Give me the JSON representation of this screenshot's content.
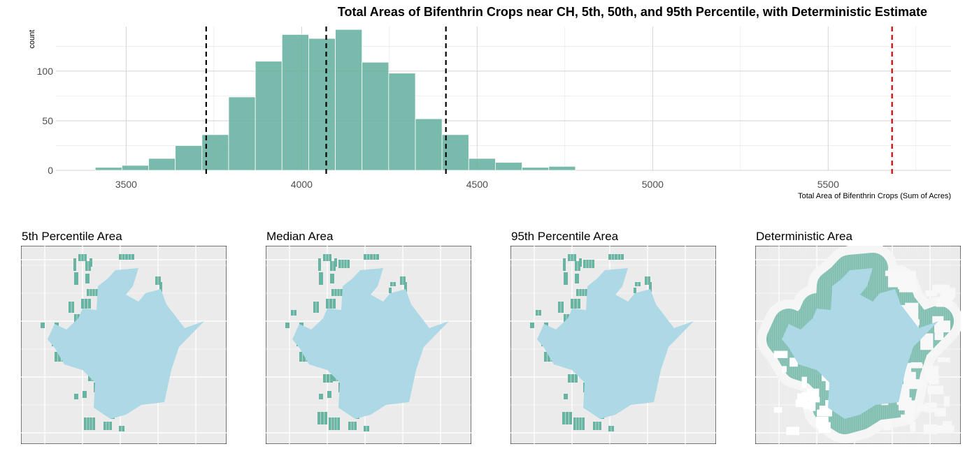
{
  "chart_data": [
    {
      "type": "bar",
      "title": "Total Areas of Bifenthrin Crops near CH, 5th, 50th, and 95th Percentile, with Deterministic Estimate",
      "xlabel": "Total Area of Bifenthrin Crops (Sum of Acres)",
      "ylabel": "count",
      "xlim": [
        3300,
        5850
      ],
      "ylim": [
        0,
        145
      ],
      "x_ticks": [
        "3500",
        "4000",
        "4500",
        "5000",
        "5500"
      ],
      "y_ticks": [
        "0",
        "50",
        "100"
      ],
      "grid": true,
      "bar_color": "#69b3a2",
      "bins": [
        {
          "x0": 3412,
          "x1": 3488,
          "count": 3
        },
        {
          "x0": 3488,
          "x1": 3564,
          "count": 5
        },
        {
          "x0": 3564,
          "x1": 3640,
          "count": 12
        },
        {
          "x0": 3640,
          "x1": 3716,
          "count": 25
        },
        {
          "x0": 3716,
          "x1": 3792,
          "count": 36
        },
        {
          "x0": 3792,
          "x1": 3868,
          "count": 74
        },
        {
          "x0": 3868,
          "x1": 3944,
          "count": 110
        },
        {
          "x0": 3944,
          "x1": 4020,
          "count": 137
        },
        {
          "x0": 4020,
          "x1": 4096,
          "count": 133
        },
        {
          "x0": 4096,
          "x1": 4172,
          "count": 142
        },
        {
          "x0": 4172,
          "x1": 4248,
          "count": 109
        },
        {
          "x0": 4248,
          "x1": 4324,
          "count": 98
        },
        {
          "x0": 4324,
          "x1": 4400,
          "count": 52
        },
        {
          "x0": 4400,
          "x1": 4476,
          "count": 36
        },
        {
          "x0": 4476,
          "x1": 4552,
          "count": 12
        },
        {
          "x0": 4552,
          "x1": 4628,
          "count": 8
        },
        {
          "x0": 4628,
          "x1": 4704,
          "count": 3
        },
        {
          "x0": 4704,
          "x1": 4780,
          "count": 4
        }
      ],
      "reference_lines": [
        {
          "x": 3728,
          "style": "dashed",
          "color": "#000000"
        },
        {
          "x": 4070,
          "style": "dashed",
          "color": "#000000"
        },
        {
          "x": 4411,
          "style": "dashed",
          "color": "#000000"
        },
        {
          "x": 5682,
          "style": "dashed",
          "color": "#cc0000"
        }
      ]
    },
    {
      "type": "map",
      "panels": [
        {
          "title": "5th Percentile Area",
          "variant": "p5"
        },
        {
          "title": "Median Area",
          "variant": "p50"
        },
        {
          "title": "95th Percentile Area",
          "variant": "p95"
        },
        {
          "title": "Deterministic Area",
          "variant": "det"
        }
      ],
      "panel_background": "#ebebeb",
      "city_color": "#add8e6",
      "crop_color": "#69b3a2",
      "buffer_color": "#f5f5f5"
    }
  ]
}
